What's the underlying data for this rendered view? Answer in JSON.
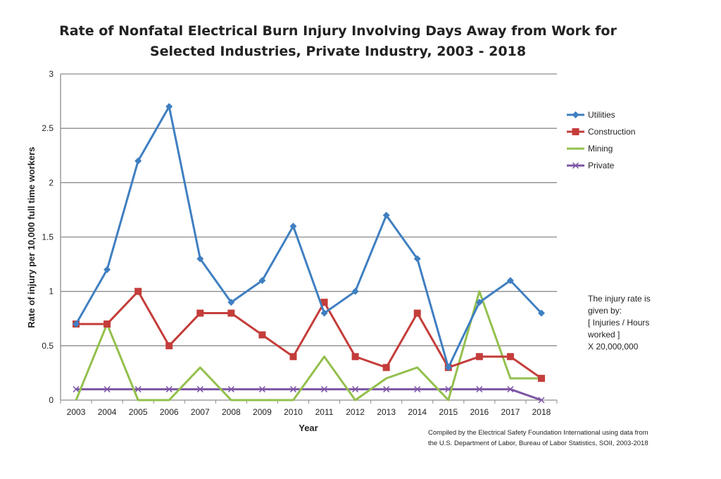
{
  "chart_data": {
    "type": "line",
    "title": [
      "Rate of Nonfatal Electrical Burn Injury Involving Days Away from Work for",
      "Selected Industries, Private Industry, 2003 - 2018"
    ],
    "xlabel": "Year",
    "ylabel": "Rate of injury per 10,000 full time workers",
    "categories": [
      "2003",
      "2004",
      "2005",
      "2006",
      "2007",
      "2008",
      "2009",
      "2010",
      "2011",
      "2012",
      "2013",
      "2014",
      "2015",
      "2016",
      "2017",
      "2018"
    ],
    "ylim": [
      0,
      3
    ],
    "yticks": [
      "0",
      "0.5",
      "1",
      "1.5",
      "2",
      "2.5",
      "3"
    ],
    "grid": true,
    "legend_position": "right",
    "series": [
      {
        "name": "Utilities",
        "color": "#3f7fc1",
        "marker": "diamond",
        "values": [
          0.7,
          1.2,
          2.2,
          2.7,
          1.3,
          0.9,
          1.1,
          1.6,
          0.8,
          1.0,
          1.7,
          1.3,
          0.3,
          0.9,
          1.1,
          0.8
        ]
      },
      {
        "name": "Construction",
        "color": "#c43d3a",
        "marker": "square",
        "values": [
          0.7,
          0.7,
          1.0,
          0.5,
          0.8,
          0.8,
          0.6,
          0.4,
          0.9,
          0.4,
          0.3,
          0.8,
          0.3,
          0.4,
          0.4,
          0.2
        ]
      },
      {
        "name": "Mining",
        "color": "#93c04d",
        "marker": "none",
        "values": [
          0,
          0.7,
          0,
          0,
          0.3,
          0,
          0,
          0,
          0.4,
          0,
          0.2,
          0.3,
          0,
          1.0,
          0.2,
          0.2
        ]
      },
      {
        "name": "Private",
        "color": "#7d55a6",
        "marker": "x",
        "values": [
          0.1,
          0.1,
          0.1,
          0.1,
          0.1,
          0.1,
          0.1,
          0.1,
          0.1,
          0.1,
          0.1,
          0.1,
          0.1,
          0.1,
          0.1,
          0
        ]
      }
    ],
    "annotation": [
      "The injury rate is",
      "given by:",
      "[ Injuries / Hours",
      "worked ]",
      "X 20,000,000"
    ],
    "footnote": [
      "Compiled by the Electrical Safety Foundation International using data from",
      "the U.S. Department of Labor, Bureau of Labor Statistics, SOII, 2003-2018"
    ]
  }
}
